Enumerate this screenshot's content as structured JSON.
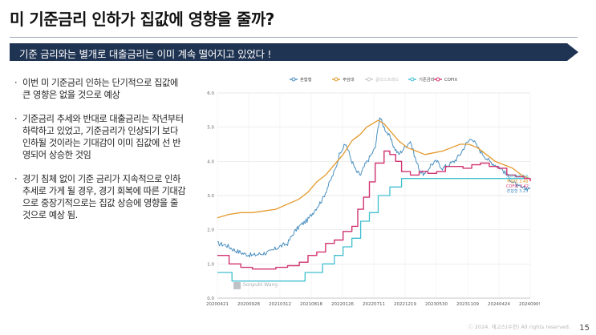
{
  "slide": {
    "title": "미 기준금리 인하가 집값에 영향을 줄까?",
    "banner": "기준 금리와는 별개로 대출금리는 이미 계속 떨어지고 있었다 !",
    "bullets": [
      "이번 미 기준금리 인하는 단기적으로 집값에 큰 영향은 없을 것으로 예상",
      "기준금리 추세와 반대로 대출금리는 작년부터 하락하고 있었고, 기준금리가 인상되기 보다 인하될 것이라는 기대감이 이미 집값에 선 반영되어 상승한 것임",
      "경기 침체 없이 기준 금리가 지속적으로 인하 추세로 가게 될 경우, 경기 회복에 따른 기대감으로 중장기적으로는 집값 상승에 영향을 줄 것으로 예상 됨."
    ],
    "bullet_marker": "·",
    "footer": "ⓒ 2024. 재고스(수현) All rights reserved.",
    "page_number": "15",
    "banner_color": "#1f3352"
  },
  "chart_data": {
    "type": "line",
    "watermark": "Sonpubl Wang",
    "legend": [
      "혼합형",
      "주담대",
      "글리스프레드",
      "기준금리",
      "COFIX"
    ],
    "legend_placement": "top",
    "x_ticks": [
      "20200421",
      "20200928",
      "20210312",
      "20210818",
      "20220126",
      "20220711",
      "20221219",
      "20230530",
      "20231109",
      "20240424",
      "20240909"
    ],
    "ylim": [
      0,
      6.0
    ],
    "y_ticks": [
      "0.0",
      "1.0",
      "2.0",
      "3.0",
      "4.0",
      "5.0",
      "6.0"
    ],
    "grid": true,
    "end_labels": [
      "기준금리 3.5",
      "주담대 3.49",
      "COFIX 3.42",
      "혼합형 3.23"
    ],
    "series": [
      {
        "name": "혼합형",
        "color": "#4a8fc0",
        "width": 1.0,
        "noise": 0.07,
        "values": [
          [
            0,
            1.6
          ],
          [
            6,
            1.55
          ],
          [
            12,
            1.4
          ],
          [
            18,
            1.3
          ],
          [
            24,
            1.25
          ],
          [
            30,
            1.3
          ],
          [
            36,
            1.35
          ],
          [
            42,
            1.5
          ],
          [
            48,
            1.6
          ],
          [
            52,
            1.9
          ],
          [
            56,
            2.1
          ],
          [
            62,
            2.3
          ],
          [
            67,
            2.6
          ],
          [
            72,
            2.9
          ],
          [
            77,
            3.4
          ],
          [
            81,
            3.8
          ],
          [
            84,
            4.3
          ],
          [
            88,
            4.5
          ],
          [
            92,
            4.0
          ],
          [
            95,
            3.7
          ],
          [
            98,
            3.6
          ],
          [
            101,
            3.9
          ],
          [
            104,
            4.1
          ],
          [
            108,
            4.4
          ],
          [
            111,
            5.3
          ],
          [
            114,
            5.0
          ],
          [
            118,
            4.7
          ],
          [
            121,
            4.4
          ],
          [
            124,
            4.2
          ],
          [
            128,
            4.4
          ],
          [
            132,
            4.6
          ],
          [
            136,
            4.0
          ],
          [
            139,
            3.7
          ],
          [
            142,
            3.6
          ],
          [
            146,
            3.9
          ],
          [
            150,
            4.0
          ],
          [
            154,
            3.8
          ],
          [
            158,
            3.9
          ],
          [
            162,
            4.0
          ],
          [
            166,
            4.2
          ],
          [
            170,
            4.5
          ],
          [
            174,
            4.7
          ],
          [
            178,
            4.4
          ],
          [
            182,
            4.2
          ],
          [
            186,
            4.0
          ],
          [
            190,
            3.9
          ],
          [
            194,
            3.8
          ],
          [
            198,
            3.6
          ],
          [
            202,
            3.4
          ],
          [
            206,
            3.25
          ],
          [
            210,
            3.2
          ],
          [
            214,
            3.23
          ]
        ]
      },
      {
        "name": "주담대",
        "color": "#e49a2e",
        "width": 1.3,
        "noise": 0,
        "values": [
          [
            0,
            2.35
          ],
          [
            8,
            2.45
          ],
          [
            16,
            2.5
          ],
          [
            24,
            2.5
          ],
          [
            32,
            2.55
          ],
          [
            40,
            2.6
          ],
          [
            48,
            2.75
          ],
          [
            56,
            2.9
          ],
          [
            62,
            3.1
          ],
          [
            68,
            3.4
          ],
          [
            74,
            3.6
          ],
          [
            80,
            3.9
          ],
          [
            86,
            4.2
          ],
          [
            92,
            4.6
          ],
          [
            98,
            4.8
          ],
          [
            102,
            5.0
          ],
          [
            106,
            5.1
          ],
          [
            110,
            5.2
          ],
          [
            114,
            5.1
          ],
          [
            118,
            4.9
          ],
          [
            124,
            4.6
          ],
          [
            130,
            4.4
          ],
          [
            136,
            4.3
          ],
          [
            142,
            4.2
          ],
          [
            148,
            4.25
          ],
          [
            154,
            4.3
          ],
          [
            160,
            4.4
          ],
          [
            166,
            4.5
          ],
          [
            172,
            4.5
          ],
          [
            178,
            4.4
          ],
          [
            184,
            4.2
          ],
          [
            190,
            4.0
          ],
          [
            196,
            3.9
          ],
          [
            202,
            3.8
          ],
          [
            208,
            3.6
          ],
          [
            214,
            3.49
          ]
        ]
      },
      {
        "name": "기준금리",
        "color": "#40bfd1",
        "width": 1.3,
        "noise": 0,
        "step": true,
        "values": [
          [
            0,
            0.75
          ],
          [
            10,
            0.5
          ],
          [
            60,
            0.5
          ],
          [
            60,
            0.75
          ],
          [
            72,
            0.75
          ],
          [
            72,
            1.0
          ],
          [
            80,
            1.0
          ],
          [
            80,
            1.25
          ],
          [
            86,
            1.25
          ],
          [
            86,
            1.5
          ],
          [
            92,
            1.5
          ],
          [
            92,
            1.75
          ],
          [
            98,
            1.75
          ],
          [
            98,
            2.25
          ],
          [
            104,
            2.25
          ],
          [
            104,
            2.5
          ],
          [
            110,
            2.5
          ],
          [
            110,
            3.0
          ],
          [
            118,
            3.0
          ],
          [
            118,
            3.25
          ],
          [
            126,
            3.25
          ],
          [
            126,
            3.5
          ],
          [
            214,
            3.5
          ]
        ]
      },
      {
        "name": "COFIX",
        "color": "#d13470",
        "width": 1.4,
        "noise": 0,
        "step": true,
        "values": [
          [
            0,
            1.25
          ],
          [
            8,
            1.0
          ],
          [
            16,
            0.9
          ],
          [
            24,
            0.85
          ],
          [
            32,
            0.85
          ],
          [
            40,
            0.9
          ],
          [
            48,
            0.95
          ],
          [
            56,
            1.05
          ],
          [
            62,
            1.25
          ],
          [
            68,
            1.35
          ],
          [
            74,
            1.6
          ],
          [
            80,
            1.7
          ],
          [
            86,
            1.95
          ],
          [
            92,
            2.1
          ],
          [
            96,
            2.6
          ],
          [
            100,
            2.95
          ],
          [
            104,
            3.4
          ],
          [
            108,
            3.95
          ],
          [
            114,
            4.3
          ],
          [
            118,
            4.2
          ],
          [
            122,
            4.0
          ],
          [
            126,
            3.7
          ],
          [
            132,
            3.6
          ],
          [
            138,
            3.7
          ],
          [
            144,
            3.65
          ],
          [
            150,
            3.7
          ],
          [
            156,
            3.85
          ],
          [
            162,
            3.85
          ],
          [
            168,
            3.8
          ],
          [
            174,
            3.9
          ],
          [
            180,
            3.95
          ],
          [
            186,
            3.85
          ],
          [
            192,
            3.8
          ],
          [
            198,
            3.6
          ],
          [
            204,
            3.55
          ],
          [
            210,
            3.5
          ],
          [
            214,
            3.42
          ]
        ]
      }
    ]
  },
  "icons": {
    "watermark_icon": "person-silhouette-icon"
  }
}
